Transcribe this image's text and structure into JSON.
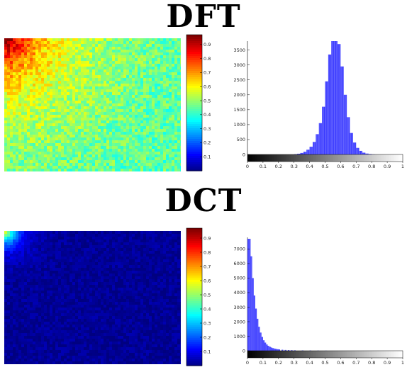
{
  "titles": {
    "dft": "DFT",
    "dct": "DCT"
  },
  "colormap": "jet",
  "chart_data": [
    {
      "type": "heatmap",
      "name": "DFT",
      "value_range": [
        0,
        1
      ],
      "corner_peak_value": 0.95,
      "background_value": 0.5,
      "colorbar_ticks": [
        "0.1",
        "0.2",
        "0.3",
        "0.4",
        "0.5",
        "0.6",
        "0.7",
        "0.8",
        "0.9"
      ]
    },
    {
      "type": "bar",
      "name": "DFT",
      "xlim": [
        0,
        1
      ],
      "ylim": [
        0,
        3800
      ],
      "xticks": [
        "0",
        "0.1",
        "0.2",
        "0.3",
        "0.4",
        "0.5",
        "0.6",
        "0.7",
        "0.8",
        "0.9",
        "1"
      ],
      "yticks": [
        "0",
        "500",
        "1000",
        "1500",
        "2000",
        "2500",
        "3000",
        "3500"
      ],
      "bar_color": "#3a3aff",
      "x": [
        0.3,
        0.32,
        0.34,
        0.36,
        0.38,
        0.4,
        0.42,
        0.44,
        0.46,
        0.48,
        0.5,
        0.52,
        0.54,
        0.56,
        0.58,
        0.6,
        0.62,
        0.64,
        0.66,
        0.68,
        0.7,
        0.72,
        0.74,
        0.76,
        0.78,
        0.8
      ],
      "values": [
        10,
        25,
        50,
        90,
        160,
        260,
        420,
        680,
        1050,
        1600,
        2450,
        3350,
        3800,
        3800,
        3700,
        2950,
        2000,
        1250,
        720,
        400,
        220,
        120,
        60,
        30,
        15,
        5
      ]
    },
    {
      "type": "heatmap",
      "name": "DCT",
      "value_range": [
        0,
        1
      ],
      "corner_peak_value": 0.6,
      "background_value": 0.02,
      "colorbar_ticks": [
        "0.1",
        "0.2",
        "0.3",
        "0.4",
        "0.5",
        "0.6",
        "0.7",
        "0.8",
        "0.9"
      ]
    },
    {
      "type": "bar",
      "name": "DCT",
      "xlim": [
        0,
        1
      ],
      "ylim": [
        0,
        7800
      ],
      "xticks": [
        "0",
        "0.1",
        "0.2",
        "0.3",
        "0.4",
        "0.5",
        "0.6",
        "0.7",
        "0.8",
        "0.9",
        "1"
      ],
      "yticks": [
        "0",
        "1000",
        "2000",
        "3000",
        "4000",
        "5000",
        "6000",
        "7000"
      ],
      "bar_color": "#3a3aff",
      "x": [
        0.0,
        0.01,
        0.02,
        0.03,
        0.04,
        0.05,
        0.06,
        0.07,
        0.08,
        0.09,
        0.1,
        0.11,
        0.12,
        0.13,
        0.14,
        0.15,
        0.16,
        0.17,
        0.18,
        0.19,
        0.2,
        0.22,
        0.24,
        0.26,
        0.28,
        0.3,
        0.35,
        0.4,
        0.45,
        0.5
      ],
      "values": [
        7700,
        7700,
        6500,
        5000,
        3800,
        2900,
        2200,
        1650,
        1250,
        950,
        720,
        560,
        430,
        340,
        270,
        220,
        180,
        150,
        125,
        105,
        90,
        70,
        55,
        45,
        38,
        30,
        22,
        15,
        10,
        6
      ]
    }
  ]
}
